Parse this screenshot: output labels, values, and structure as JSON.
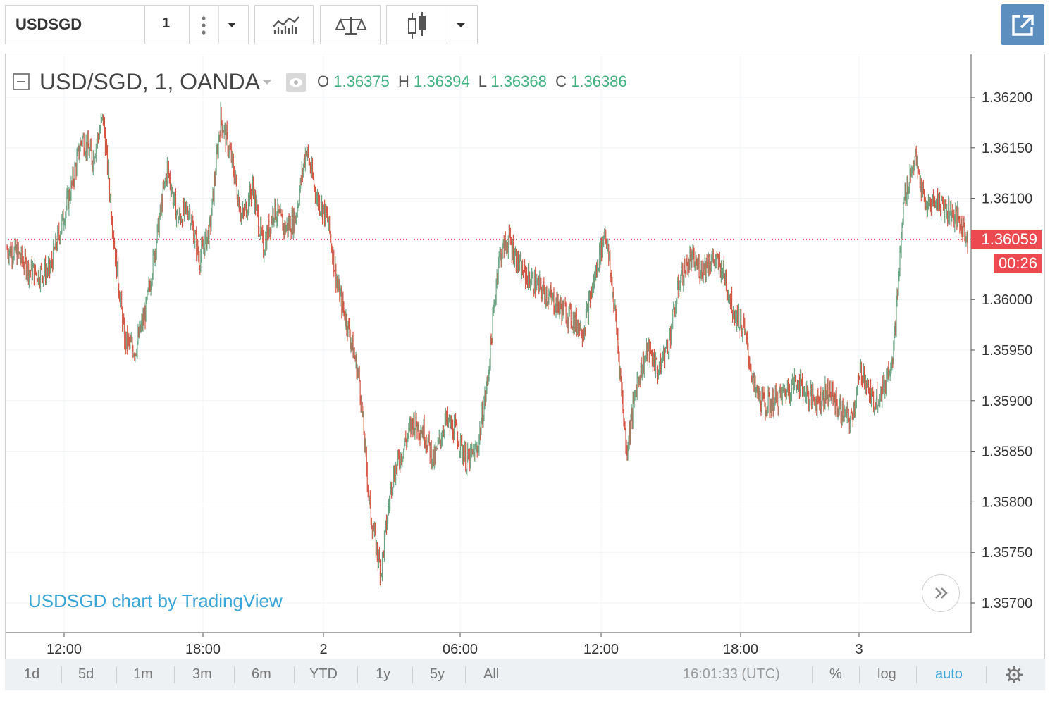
{
  "toolbar": {
    "symbol": "USDSGD",
    "interval": "1"
  },
  "legend": {
    "title": "USD/SGD, 1, OANDA",
    "o_label": "O",
    "o_value": "1.36375",
    "h_label": "H",
    "h_value": "1.36394",
    "l_label": "L",
    "l_value": "1.36368",
    "c_label": "C",
    "c_value": "1.36386"
  },
  "watermark": "USDSGD chart by TradingView",
  "last_price": {
    "value": "1.36059",
    "countdown": "00:26"
  },
  "bottom_bar": {
    "ranges": [
      "1d",
      "5d",
      "1m",
      "3m",
      "6m",
      "YTD",
      "1y",
      "5y",
      "All"
    ],
    "clock": "16:01:33 (UTC)",
    "percent": "%",
    "log": "log",
    "auto": "auto"
  },
  "colors": {
    "up": "#6ba583",
    "down": "#d75442",
    "grid": "#f0f3f5",
    "accent": "#39a5d9",
    "price_tag": "#ec4a50",
    "popout": "#5c8fc0"
  },
  "chart_data": {
    "type": "line",
    "description_free": true,
    "x_tick_labels": [
      "12:00",
      "18:00",
      "2",
      "06:00",
      "12:00",
      "18:00",
      "3"
    ],
    "y_tick_labels": [
      "1.36200",
      "1.36150",
      "1.36100",
      "1.36000",
      "1.35950",
      "1.35900",
      "1.35850",
      "1.35800",
      "1.35750",
      "1.35700"
    ],
    "ylim": [
      1.3567,
      1.3626
    ],
    "x": [
      "09:00",
      "09:30",
      "10:00",
      "10:30",
      "11:00",
      "11:30",
      "12:00",
      "12:30",
      "13:00",
      "13:30",
      "14:00",
      "14:30",
      "15:00",
      "15:30",
      "16:00",
      "16:30",
      "17:00",
      "17:30",
      "18:00",
      "18:30",
      "19:00",
      "19:30",
      "20:00",
      "20:30",
      "21:00",
      "21:30",
      "22:00",
      "22:30",
      "23:00",
      "23:30",
      "00:00",
      "00:30",
      "01:00",
      "01:30",
      "02:00",
      "02:30",
      "03:00",
      "03:30",
      "04:00",
      "04:30",
      "05:00",
      "05:30",
      "06:00",
      "06:30",
      "07:00",
      "07:30",
      "08:00",
      "08:30",
      "09:00",
      "09:30",
      "10:00",
      "10:30",
      "11:00",
      "11:30",
      "12:00",
      "12:30",
      "13:00",
      "13:30",
      "14:00",
      "14:30",
      "15:00",
      "15:30",
      "16:00",
      "16:30",
      "17:00",
      "17:30",
      "18:00",
      "18:30",
      "19:00",
      "19:30",
      "20:00",
      "20:30",
      "21:00",
      "21:30",
      "22:00",
      "22:30",
      "23:00",
      "23:30",
      "00:00",
      "00:30",
      "01:00",
      "01:30",
      "02:00",
      "02:30",
      "03:00",
      "03:30",
      "04:00",
      "04:30",
      "05:00",
      "05:30",
      "06:00"
    ],
    "values": [
      1.3605,
      1.36045,
      1.3603,
      1.36025,
      1.3603,
      1.3607,
      1.3611,
      1.3616,
      1.3614,
      1.3618,
      1.3606,
      1.3596,
      1.3595,
      1.3599,
      1.3606,
      1.3613,
      1.3608,
      1.3609,
      1.3604,
      1.3607,
      1.3618,
      1.3614,
      1.3608,
      1.3611,
      1.3605,
      1.3609,
      1.3607,
      1.3608,
      1.3615,
      1.361,
      1.3608,
      1.3601,
      1.3597,
      1.3592,
      1.3579,
      1.3573,
      1.3582,
      1.3585,
      1.3588,
      1.3587,
      1.3584,
      1.3588,
      1.3587,
      1.3584,
      1.3585,
      1.3592,
      1.3604,
      1.3606,
      1.3603,
      1.3602,
      1.3601,
      1.36,
      1.3599,
      1.3598,
      1.3597,
      1.3602,
      1.3607,
      1.3598,
      1.3585,
      1.3592,
      1.3595,
      1.3593,
      1.3596,
      1.3602,
      1.3604,
      1.3603,
      1.3604,
      1.3603,
      1.3599,
      1.3597,
      1.3591,
      1.35895,
      1.359,
      1.3591,
      1.3592,
      1.35905,
      1.359,
      1.3591,
      1.3589,
      1.3588,
      1.3593,
      1.359,
      1.3591,
      1.3595,
      1.361,
      1.3614,
      1.3609,
      1.361,
      1.3609,
      1.3608,
      1.36059
    ],
    "x_ticks_at": [
      "12:00",
      "18:00",
      "00:00",
      "06:00",
      "12:00",
      "18:00",
      "00:00"
    ]
  }
}
